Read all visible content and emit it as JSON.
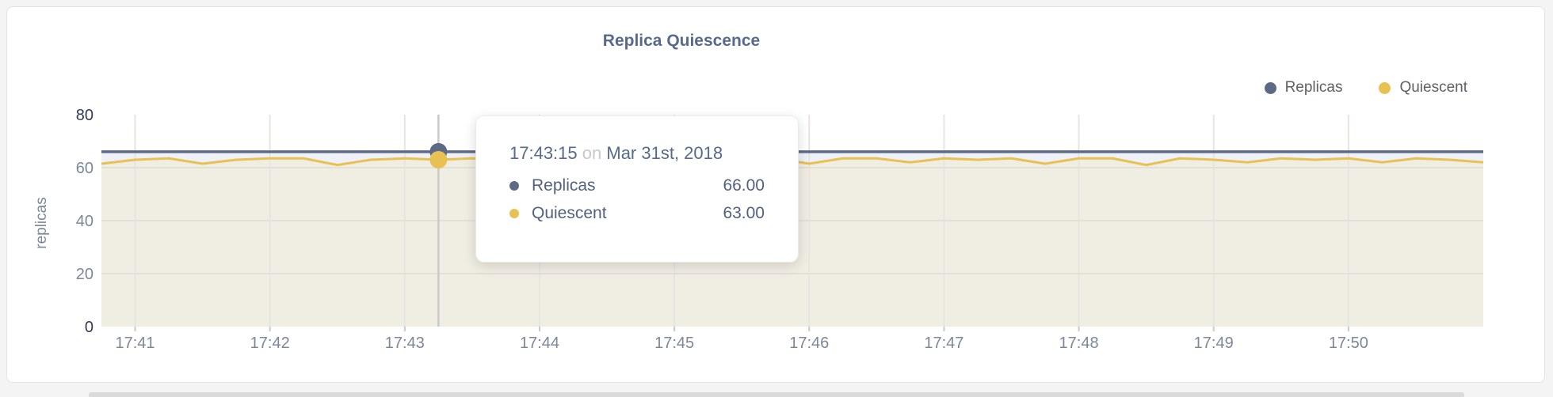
{
  "page": {
    "background": "#f5f4f4",
    "card_background": "#ffffff",
    "card_border": "#e4e4e4"
  },
  "header": {
    "title": "Replica Quiescence"
  },
  "legend": {
    "items": [
      {
        "label": "Replicas",
        "color": "#5d6a85"
      },
      {
        "label": "Quiescent",
        "color": "#e9c052"
      }
    ]
  },
  "tooltip": {
    "time": "17:43:15",
    "connector": "on",
    "date": "Mar 31st, 2018",
    "rows": [
      {
        "label": "Replicas",
        "value": "66.00",
        "color": "#5d6a85"
      },
      {
        "label": "Quiescent",
        "value": "63.00",
        "color": "#e9c052"
      }
    ]
  },
  "chart_data": {
    "type": "area",
    "title": "Replica Quiescence",
    "xlabel": "",
    "ylabel": "replicas",
    "ylim": [
      0,
      80
    ],
    "y_ticks": [
      0,
      20,
      40,
      60,
      80
    ],
    "x_ticks": [
      "17:41",
      "17:42",
      "17:43",
      "17:44",
      "17:45",
      "17:46",
      "17:47",
      "17:48",
      "17:49",
      "17:50"
    ],
    "x_domain": [
      "17:40:45",
      "17:51:00"
    ],
    "grid": true,
    "legend_position": "top-right",
    "hover": {
      "x": "17:43:15"
    },
    "x": [
      "17:40:45",
      "17:41:00",
      "17:41:15",
      "17:41:30",
      "17:41:45",
      "17:42:00",
      "17:42:15",
      "17:42:30",
      "17:42:45",
      "17:43:00",
      "17:43:15",
      "17:43:30",
      "17:43:45",
      "17:44:00",
      "17:44:15",
      "17:44:30",
      "17:44:45",
      "17:45:00",
      "17:45:15",
      "17:45:30",
      "17:45:45",
      "17:46:00",
      "17:46:15",
      "17:46:30",
      "17:46:45",
      "17:47:00",
      "17:47:15",
      "17:47:30",
      "17:47:45",
      "17:48:00",
      "17:48:15",
      "17:48:30",
      "17:48:45",
      "17:49:00",
      "17:49:15",
      "17:49:30",
      "17:49:45",
      "17:50:00",
      "17:50:15",
      "17:50:30",
      "17:50:45",
      "17:51:00"
    ],
    "series": [
      {
        "name": "Replicas",
        "color": "#5d6a85",
        "fill": "#eef1f8",
        "line_width": 3.5,
        "values": [
          66,
          66,
          66,
          66,
          66,
          66,
          66,
          66,
          66,
          66,
          66,
          66,
          66,
          66,
          66,
          66,
          66,
          66,
          66,
          66,
          66,
          66,
          66,
          66,
          66,
          66,
          66,
          66,
          66,
          66,
          66,
          66,
          66,
          66,
          66,
          66,
          66,
          66,
          66,
          66,
          66,
          66
        ]
      },
      {
        "name": "Quiescent",
        "color": "#e9c052",
        "fill": "#f0ede2",
        "line_width": 3,
        "values": [
          61.5,
          63,
          63.5,
          61.5,
          63,
          63.5,
          63.5,
          61,
          63,
          63.5,
          63,
          63.5,
          63,
          63.5,
          61,
          63,
          63.5,
          62,
          63.5,
          63,
          63.5,
          61.5,
          63.5,
          63.5,
          62,
          63.5,
          63,
          63.5,
          61.5,
          63.5,
          63.5,
          61,
          63.5,
          63,
          62,
          63.5,
          63,
          63.5,
          62,
          63.5,
          63,
          62
        ]
      }
    ],
    "colors": {
      "grid_vertical": "#e8e5df",
      "grid_horizontal": "#e3e0d7",
      "crosshair": "#c9c9c9",
      "tick_label": "#7c8799",
      "tick_label_extremes": "#2f3b57",
      "axis_label": "#7c8799"
    }
  }
}
